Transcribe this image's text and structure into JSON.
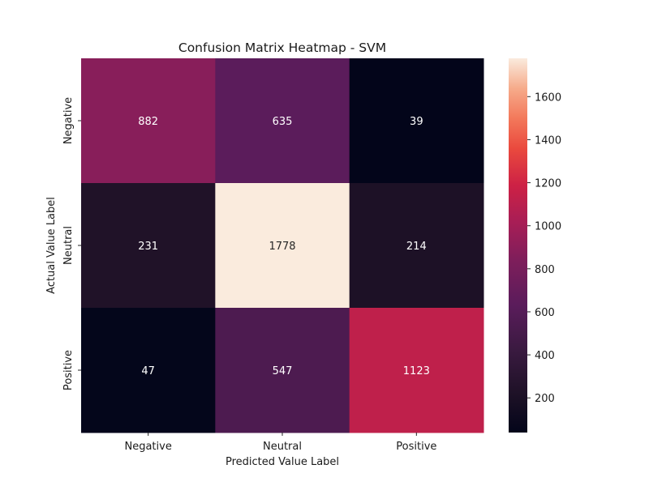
{
  "chart_data": {
    "type": "heatmap",
    "title": "Confusion Matrix Heatmap - SVM",
    "xlabel": "Predicted Value Label",
    "ylabel": "Actual Value Label",
    "x_categories": [
      "Negative",
      "Neutral",
      "Positive"
    ],
    "y_categories": [
      "Negative",
      "Neutral",
      "Positive"
    ],
    "values": [
      [
        882,
        635,
        39
      ],
      [
        231,
        1778,
        214
      ],
      [
        47,
        547,
        1123
      ]
    ],
    "colormap": "rocket",
    "colorbar": {
      "range": [
        39,
        1778
      ],
      "ticks": [
        200,
        400,
        600,
        800,
        1000,
        1200,
        1400,
        1600
      ]
    }
  }
}
